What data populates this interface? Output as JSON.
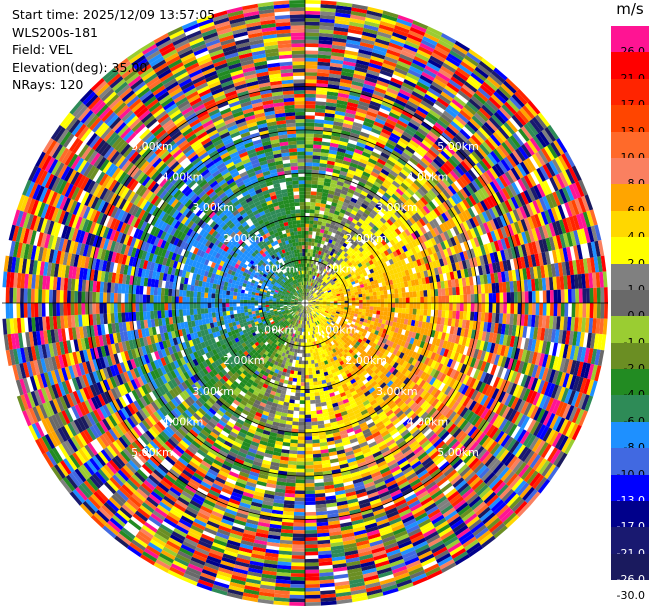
{
  "header": {
    "start_time": "Start time: 2025/12/09 13:57:05",
    "instrument": "WLS200s-181",
    "field": "Field: VEL",
    "elevation": "Elevation(deg): 35.00",
    "nrays": "NRays: 120"
  },
  "colorbar": {
    "unit": "m/s",
    "levels": [
      {
        "label": "26.0",
        "color": "#ff1493"
      },
      {
        "label": "21.0",
        "color": "#ff0000"
      },
      {
        "label": "17.0",
        "color": "#ff2400"
      },
      {
        "label": "13.0",
        "color": "#ff4500"
      },
      {
        "label": "10.0",
        "color": "#ff6a2a"
      },
      {
        "label": "8.0",
        "color": "#fa8060"
      },
      {
        "label": "6.0",
        "color": "#ffa500"
      },
      {
        "label": "4.0",
        "color": "#ffd700"
      },
      {
        "label": "2.0",
        "color": "#ffff00"
      },
      {
        "label": "1.0",
        "color": "#808080"
      },
      {
        "label": "0.0",
        "color": "#696969"
      },
      {
        "label": "-1.0",
        "color": "#9acd32"
      },
      {
        "label": "-2.0",
        "color": "#6b8e23"
      },
      {
        "label": "-4.0",
        "color": "#228b22"
      },
      {
        "label": "-6.0",
        "color": "#2e8b57"
      },
      {
        "label": "-8.0",
        "color": "#1e90ff"
      },
      {
        "label": "-10.0",
        "color": "#4169e1"
      },
      {
        "label": "-13.0",
        "color": "#0000ff"
      },
      {
        "label": "-17.0",
        "color": "#00008b"
      },
      {
        "label": "-21.0",
        "color": "#191970"
      },
      {
        "label": "-26.0",
        "color": "#1a1a5e"
      }
    ],
    "bottom_label": "-30.0"
  },
  "chart_data": {
    "type": "ppi",
    "field": "VEL",
    "units": "m/s",
    "nrays": 120,
    "elevation_deg": 35.0,
    "range_rings_km": [
      1.0,
      2.0,
      3.0,
      4.0,
      5.0
    ],
    "ring_labels": [
      "1.00km",
      "2.00km",
      "3.00km",
      "4.00km",
      "5.00km"
    ],
    "max_range_km": 7.0,
    "crosshair_lines": true
  }
}
